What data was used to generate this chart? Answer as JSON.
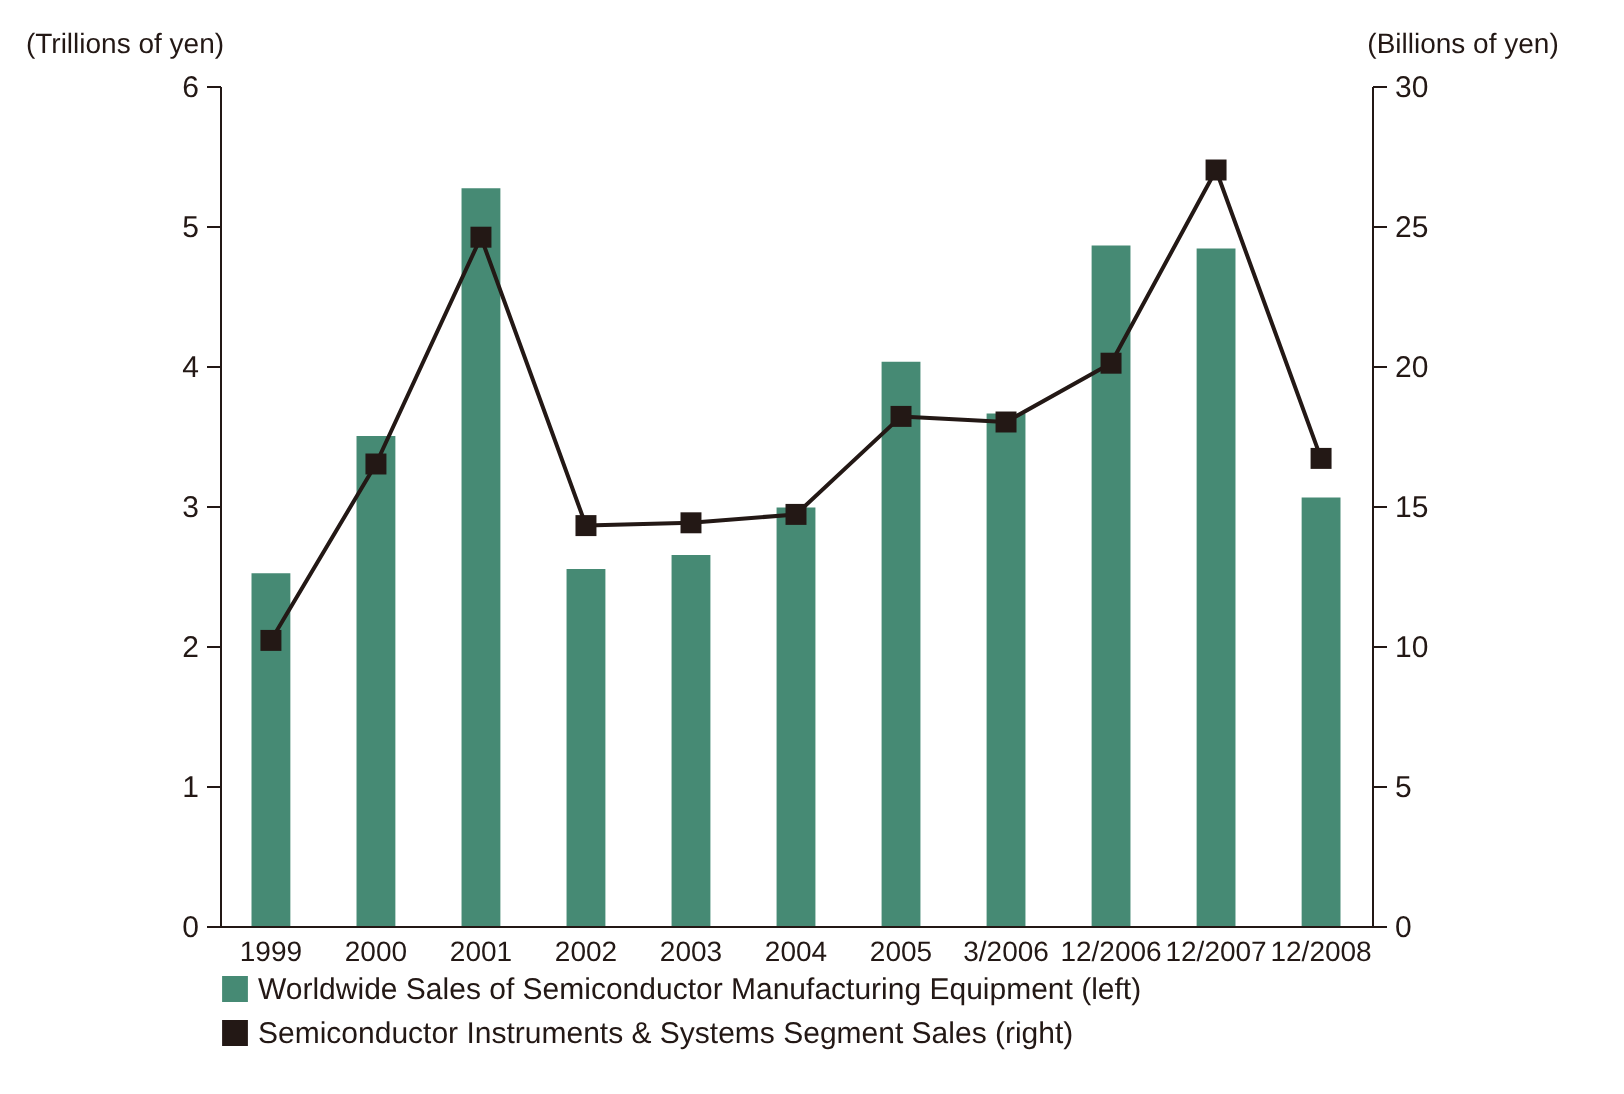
{
  "chart_data": {
    "type": "bar",
    "categories": [
      "1999",
      "2000",
      "2001",
      "2002",
      "2003",
      "2004",
      "2005",
      "3/2006",
      "12/2006",
      "12/2007",
      "12/2008"
    ],
    "series": [
      {
        "name": "Worldwide Sales of Semiconductor Manufacturing Equipment (left)",
        "color": "#468a74",
        "values": [
          2.52,
          3.5,
          5.27,
          2.55,
          2.65,
          2.99,
          4.03,
          3.66,
          4.86,
          4.84,
          3.06
        ]
      },
      {
        "name": "Semiconductor Instruments & Systems Segment Sales (right)",
        "type": "line",
        "axis": "y2",
        "color": "#231815",
        "marker": "square",
        "line_style": "solid",
        "values": [
          10.2,
          16.5,
          24.6,
          14.3,
          14.4,
          14.7,
          18.2,
          18.0,
          20.1,
          27.0,
          16.7
        ]
      }
    ],
    "ylabel": "(Trillions of yen)",
    "y2label": "(Billions of yen)",
    "ylim": [
      0,
      6
    ],
    "yticks": [
      0,
      1,
      2,
      3,
      4,
      5,
      6
    ],
    "y2lim": [
      0,
      30
    ],
    "y2ticks": [
      0,
      5,
      10,
      15,
      20,
      25,
      30
    ],
    "legend": "bottom"
  }
}
